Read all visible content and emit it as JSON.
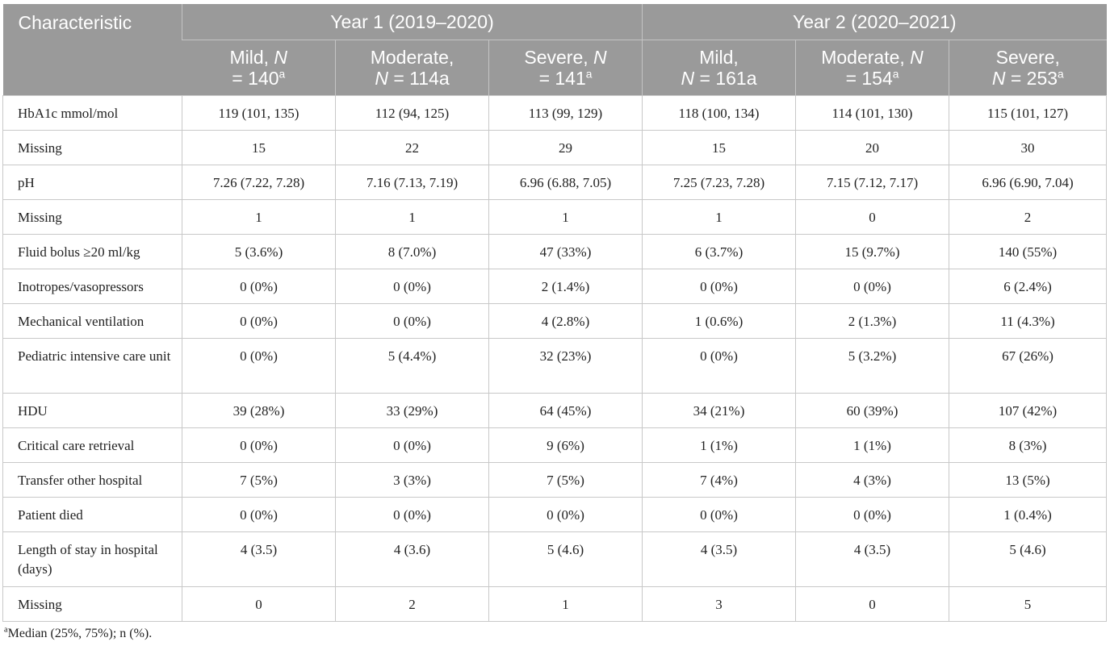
{
  "header": {
    "characteristic": "Characteristic",
    "year1": "Year 1 (2019–2020)",
    "year2": "Year 2 (2020–2021)",
    "columns": [
      {
        "l1": "Mild, ",
        "i1": "N",
        "l2": "= 140",
        "sup": "a"
      },
      {
        "l1": "Moderate,",
        "i2": "N",
        "l2": " = 114a"
      },
      {
        "l1": "Severe, ",
        "i1": "N",
        "l2": "= 141",
        "sup": "a"
      },
      {
        "l1": "Mild,",
        "i2": "N",
        "l2": " = 161a"
      },
      {
        "l1": "Moderate, ",
        "i1": "N",
        "l2": "= 154",
        "sup": "a"
      },
      {
        "l1": "Severe,",
        "i2": "N",
        "l2": " = 253",
        "sup": "a"
      }
    ]
  },
  "rows": [
    {
      "label": "HbA1c mmol/mol",
      "values": [
        "119 (101, 135)",
        "112 (94, 125)",
        "113 (99, 129)",
        "118 (100, 134)",
        "114 (101, 130)",
        "115 (101, 127)"
      ]
    },
    {
      "label": "Missing",
      "values": [
        "15",
        "22",
        "29",
        "15",
        "20",
        "30"
      ]
    },
    {
      "label": "pH",
      "values": [
        "7.26 (7.22, 7.28)",
        "7.16 (7.13, 7.19)",
        "6.96 (6.88, 7.05)",
        "7.25 (7.23, 7.28)",
        "7.15 (7.12, 7.17)",
        "6.96 (6.90, 7.04)"
      ]
    },
    {
      "label": "Missing",
      "values": [
        "1",
        "1",
        "1",
        "1",
        "0",
        "2"
      ]
    },
    {
      "label": "Fluid bolus ≥20 ml/kg",
      "values": [
        "5 (3.6%)",
        "8 (7.0%)",
        "47 (33%)",
        "6 (3.7%)",
        "15 (9.7%)",
        "140 (55%)"
      ]
    },
    {
      "label": "Inotropes/vasopressors",
      "values": [
        "0 (0%)",
        "0 (0%)",
        "2 (1.4%)",
        "0 (0%)",
        "0 (0%)",
        "6 (2.4%)"
      ]
    },
    {
      "label": "Mechanical ventilation",
      "values": [
        "0 (0%)",
        "0 (0%)",
        "4 (2.8%)",
        "1 (0.6%)",
        "2 (1.3%)",
        "11 (4.3%)"
      ]
    },
    {
      "label": "Pediatric intensive care unit",
      "values": [
        "0 (0%)",
        "5 (4.4%)",
        "32 (23%)",
        "0 (0%)",
        "5 (3.2%)",
        "67 (26%)"
      ]
    },
    {
      "label": "HDU",
      "values": [
        "39 (28%)",
        "33 (29%)",
        "64 (45%)",
        "34 (21%)",
        "60 (39%)",
        "107 (42%)"
      ]
    },
    {
      "label": "Critical care retrieval",
      "values": [
        "0 (0%)",
        "0 (0%)",
        "9 (6%)",
        "1 (1%)",
        "1 (1%)",
        "8 (3%)"
      ]
    },
    {
      "label": "Transfer other hospital",
      "values": [
        "7 (5%)",
        "3 (3%)",
        "7 (5%)",
        "7 (4%)",
        "4 (3%)",
        "13 (5%)"
      ]
    },
    {
      "label": "Patient died",
      "values": [
        "0 (0%)",
        "0 (0%)",
        "0 (0%)",
        "0 (0%)",
        "0 (0%)",
        "1 (0.4%)"
      ]
    },
    {
      "label": "Length of stay in hospital (days)",
      "values": [
        "4 (3.5)",
        "4 (3.6)",
        "5 (4.6)",
        "4 (3.5)",
        "4 (3.5)",
        "5 (4.6)"
      ]
    },
    {
      "label": "Missing",
      "values": [
        "0",
        "2",
        "1",
        "3",
        "0",
        "5"
      ]
    }
  ],
  "footnote": {
    "marker": "a",
    "text": "Median (25%, 75%); n (%)."
  },
  "colors": {
    "header_bg": "#9a9a9a",
    "header_text": "#ffffff",
    "border": "#c8c8c8"
  }
}
